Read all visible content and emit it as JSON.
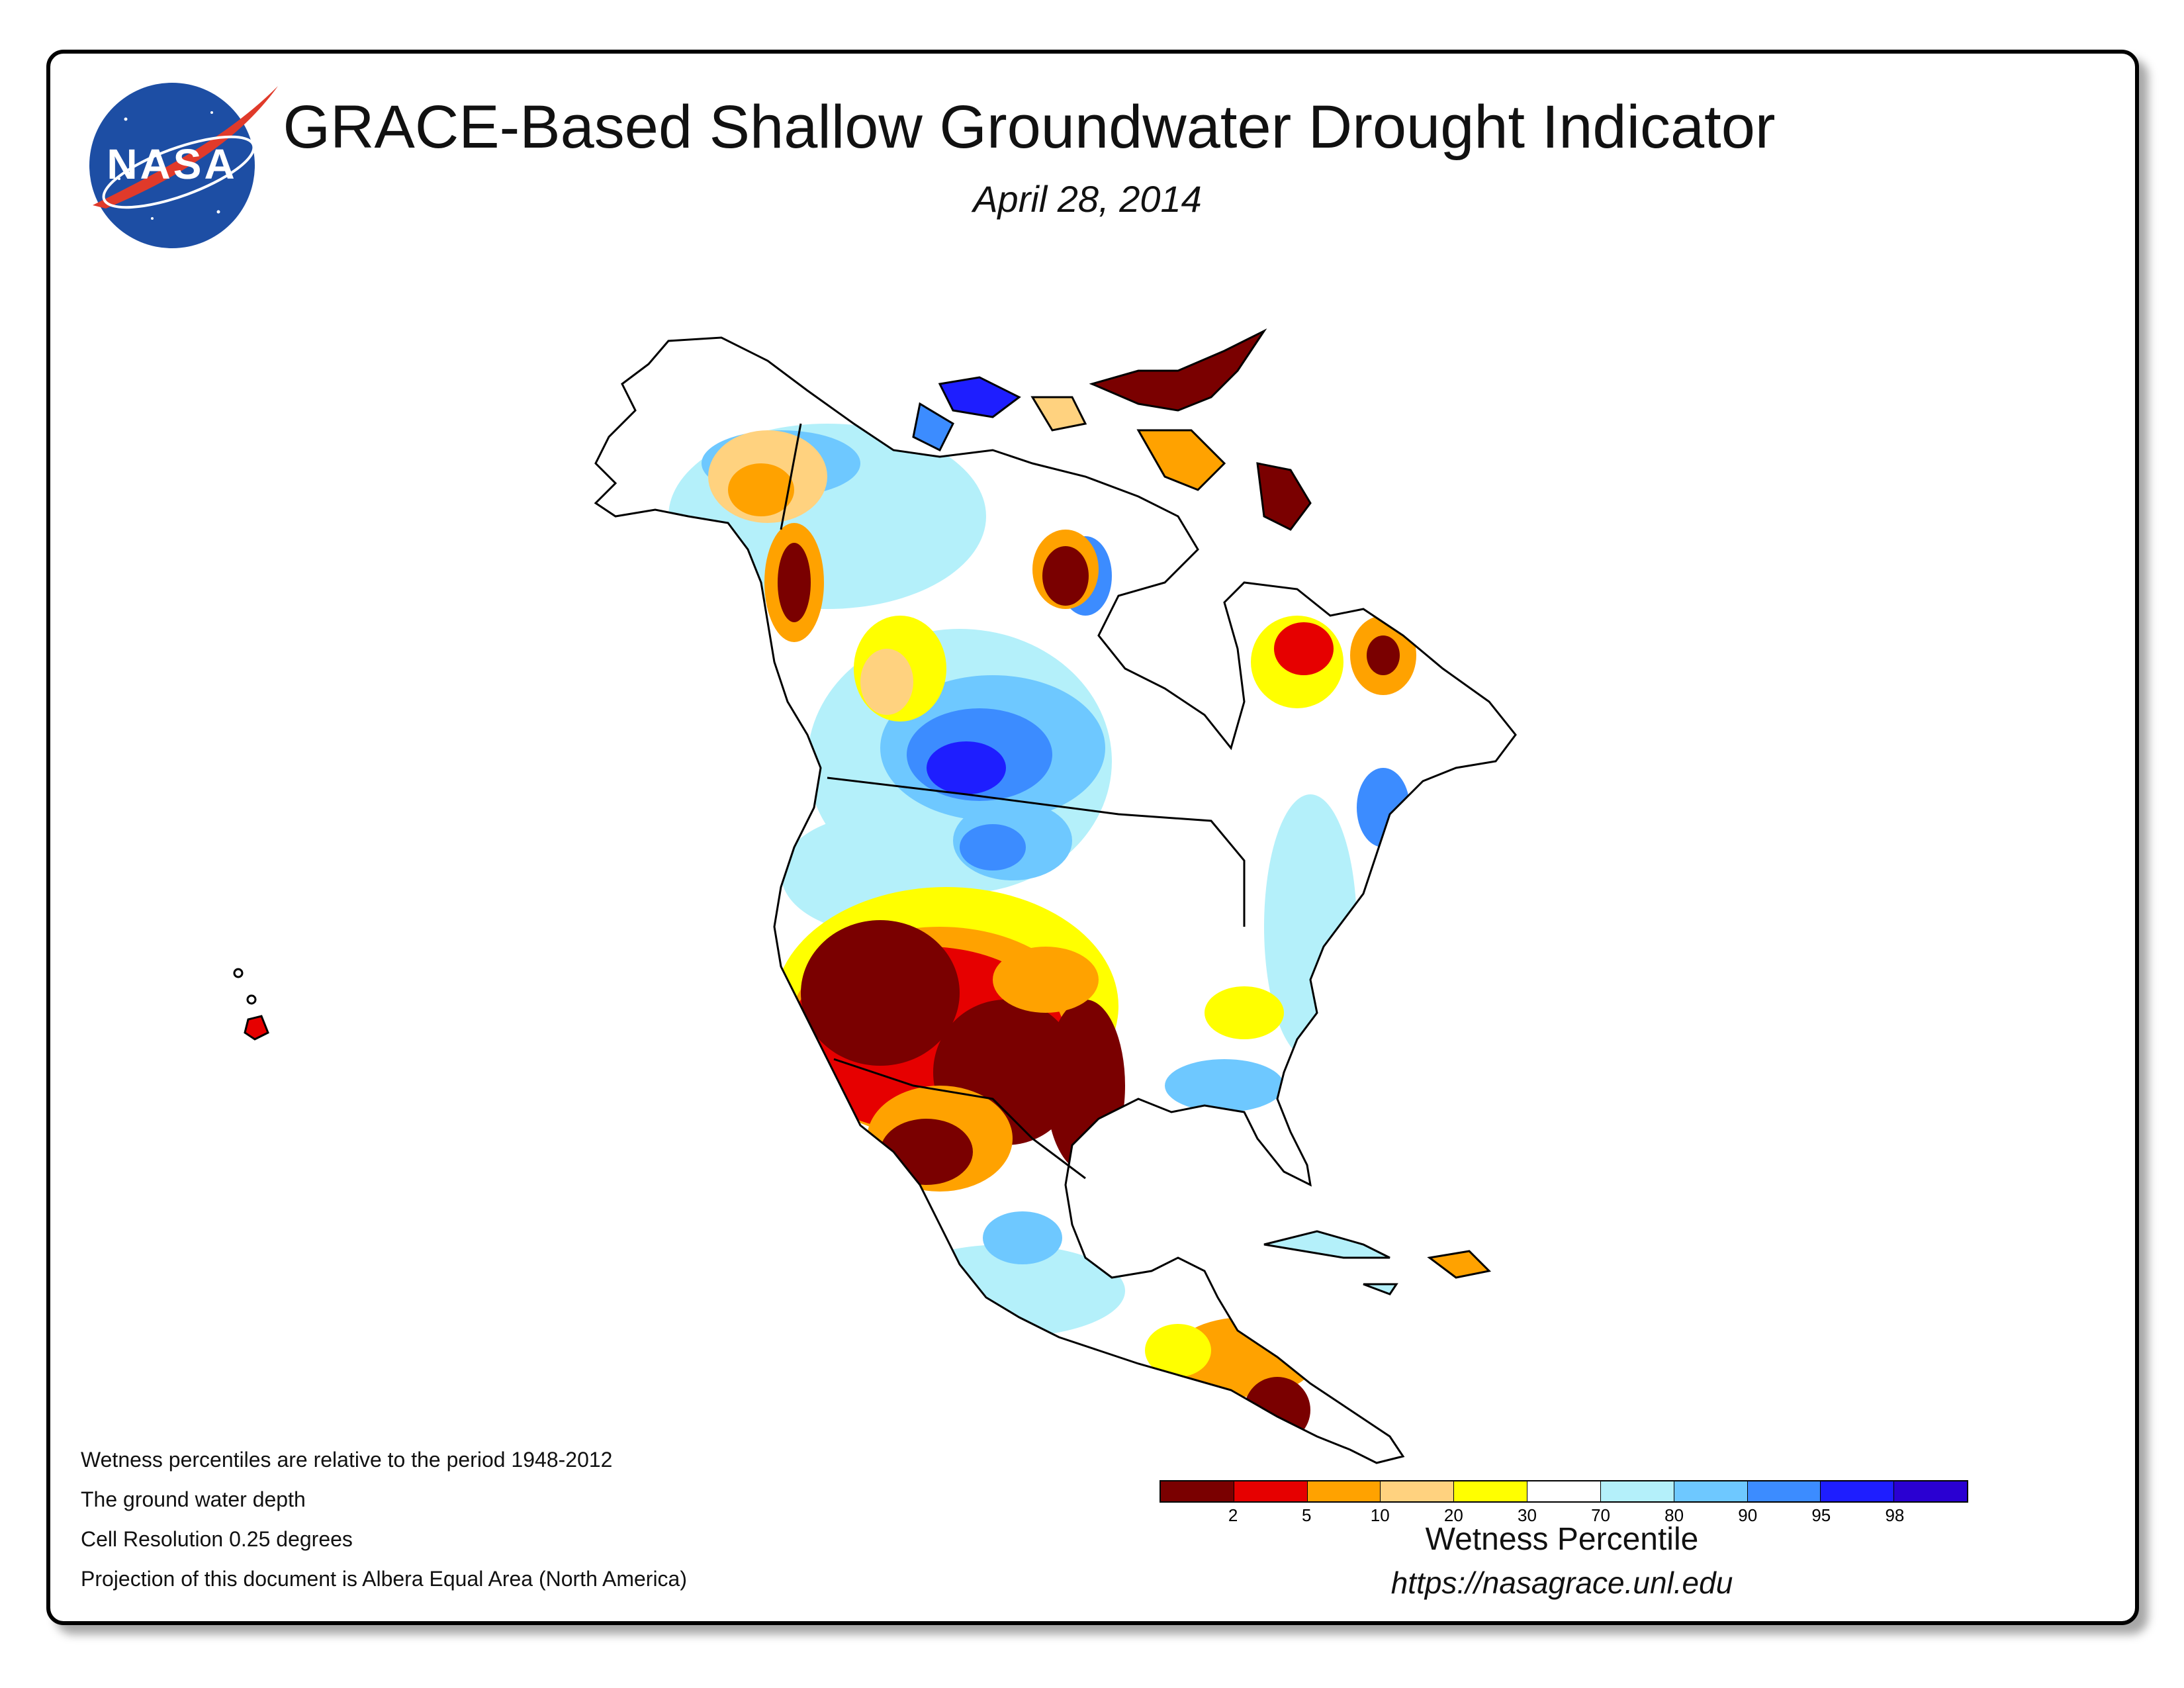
{
  "title": "GRACE-Based Shallow Groundwater Drought Indicator",
  "date": "April 28, 2014",
  "logo": {
    "text": "NASA",
    "icon": "nasa-meatball-logo"
  },
  "notes": [
    "Wetness percentiles are relative to the period 1948-2012",
    "The ground water depth",
    "Cell Resolution 0.25 degrees",
    "Projection of this document is Albera Equal Area (North America)"
  ],
  "legend": {
    "title": "Wetness Percentile",
    "url": "https://nasagrace.unl.edu",
    "tick_labels": [
      "2",
      "5",
      "10",
      "20",
      "30",
      "70",
      "80",
      "90",
      "95",
      "98"
    ],
    "colors": [
      "#7a0000",
      "#e60000",
      "#ffa200",
      "#ffd27f",
      "#ffff00",
      "#ffffff",
      "#b4f0fa",
      "#6ec8ff",
      "#3c8cff",
      "#1e1eff",
      "#2a00d2"
    ]
  },
  "map_colors": {
    "ocean": "#ffffff",
    "land_outline": "#000000",
    "border": "#000000"
  }
}
